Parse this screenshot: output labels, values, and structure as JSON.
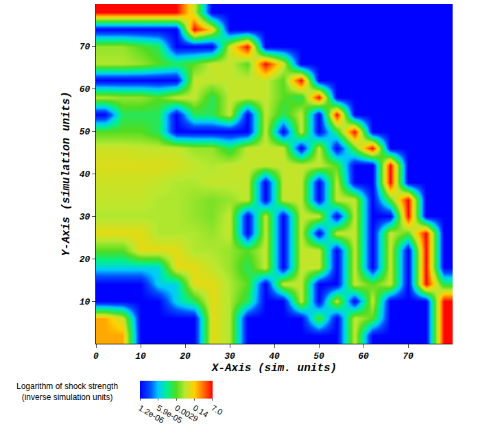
{
  "chart_data": {
    "type": "heatmap",
    "x_label": "X-Axis (sim. units)",
    "y_label": "Y-Axis (simulation units)",
    "x": [
      2,
      6,
      10,
      14,
      18,
      22,
      26,
      30,
      34,
      38,
      42,
      46,
      50,
      54,
      58,
      62,
      66,
      70,
      74,
      78
    ],
    "y": [
      2,
      6,
      10,
      14,
      18,
      22,
      26,
      30,
      34,
      38,
      42,
      46,
      50,
      54,
      58,
      62,
      66,
      70,
      74,
      78
    ],
    "z": [
      [
        -0.5,
        -0.5,
        -5.9,
        -5.9,
        -5.9,
        -5.9,
        -1.2,
        -1.8,
        -5.9,
        -5.9,
        -5.9,
        -5.9,
        -5.9,
        -5.9,
        -1.6,
        -5.9,
        -5.9,
        -5.9,
        -5.9,
        0.8
      ],
      [
        -0.5,
        -1.5,
        -5.9,
        -5.9,
        -5.9,
        -5.9,
        -1.2,
        -1.8,
        -5.9,
        -5.9,
        -5.9,
        -5.9,
        -2.5,
        -5.9,
        -1.6,
        -2.5,
        -5.9,
        -5.9,
        -5.9,
        0.8
      ],
      [
        -5.9,
        -5.9,
        -5.9,
        -5.9,
        -4,
        -3,
        -1.2,
        -1.8,
        -3,
        -5.9,
        -5.9,
        -1.6,
        -5.9,
        -1.6,
        -5.9,
        -1.6,
        -5.9,
        -5.9,
        -5.9,
        0.8
      ],
      [
        -5.9,
        -5.9,
        -5.9,
        -4,
        -4,
        -1.2,
        -1.2,
        -1.8,
        -2.5,
        -5.9,
        -1.6,
        -1.6,
        -5.9,
        -5.9,
        -1.6,
        -2.5,
        -1.6,
        -5.9,
        0.8,
        -3
      ],
      [
        -4,
        -4,
        -4,
        -4,
        -1.2,
        -1.2,
        -1.6,
        -2,
        -3,
        -1.6,
        -5.9,
        -1.6,
        -1.6,
        -5.9,
        -1.6,
        -5.9,
        -1.6,
        -5.9,
        0.8,
        -5.9
      ],
      [
        -2.5,
        -2.5,
        -1.2,
        -1.2,
        -1.2,
        -1.8,
        -1.8,
        -2,
        -2.5,
        -1.6,
        -5.9,
        -1.6,
        -1.6,
        -5.9,
        -1.6,
        -5.9,
        -1.6,
        -5.9,
        0.8,
        -5.9
      ],
      [
        -1.2,
        -1.2,
        -1.2,
        -1.8,
        -1.8,
        -1.8,
        -2,
        -1.6,
        -5.9,
        -1.6,
        -5.9,
        -1.6,
        -5.9,
        -1.6,
        -1.6,
        -5.9,
        -1.6,
        -2.5,
        0.8,
        -5.9
      ],
      [
        -1.8,
        -1.8,
        -1.8,
        -1.8,
        -1.8,
        -2,
        -2.2,
        -1.6,
        -5.9,
        -1.6,
        -5.9,
        -1.6,
        -1.6,
        -5.9,
        -1.6,
        -5.9,
        -5.9,
        0.8,
        -5.9,
        -5.9
      ],
      [
        -1.6,
        -1.6,
        -1.6,
        -1.8,
        -1.8,
        -2,
        -2.2,
        -2,
        -1.6,
        -5.9,
        -1.6,
        -1.6,
        -5.9,
        -1.6,
        -1.6,
        -5.9,
        -2.5,
        0.8,
        -5.9,
        -5.9
      ],
      [
        -1.5,
        -1.5,
        -1.5,
        -1.6,
        -1.8,
        -1.8,
        -1.6,
        -1.6,
        -1.6,
        -5.9,
        -1.6,
        -1.6,
        -5.9,
        -1.6,
        -5.9,
        -5.9,
        0.8,
        -5.9,
        -5.9,
        -5.9
      ],
      [
        -1.3,
        -1.3,
        -1.3,
        -1.3,
        -1.4,
        -1.6,
        -1.8,
        -1.6,
        -1.6,
        -1.6,
        -1.6,
        -1.6,
        -1.6,
        -2.5,
        -5.9,
        -5.9,
        0.8,
        -5.9,
        -5.9,
        -5.9
      ],
      [
        -1.5,
        -1.5,
        -1.6,
        -1.6,
        -1.6,
        -2,
        -2,
        -3,
        -1.6,
        -1.6,
        -1.6,
        -5.9,
        -1.6,
        -5.9,
        -2.5,
        0.8,
        -5.9,
        -5.9,
        -5.9,
        -5.9
      ],
      [
        -2.5,
        -2.5,
        -2.5,
        -3,
        -5.9,
        -5.9,
        -5.9,
        -5.9,
        -5.9,
        -1.6,
        -5.9,
        -1.6,
        -5.9,
        -3,
        0.8,
        -5.9,
        -5.9,
        -5.9,
        -5.9,
        -5.9
      ],
      [
        -5.9,
        -3,
        -3,
        -3,
        -5.9,
        -3,
        -3,
        -1.6,
        -5.9,
        -1.6,
        -3,
        -1.6,
        -5.9,
        0.8,
        -5.9,
        -5.9,
        -5.9,
        -5.9,
        -5.9,
        -5.9
      ],
      [
        -1.8,
        -2,
        -2,
        -2.5,
        -1.6,
        -1.6,
        -3,
        -1.6,
        -1.6,
        -1.6,
        -2.5,
        -3,
        0.8,
        -5.9,
        -5.9,
        -5.9,
        -5.9,
        -5.9,
        -5.9,
        -5.9
      ],
      [
        -5.9,
        -5.9,
        -5.9,
        -5.9,
        -5.9,
        -1.6,
        -1.6,
        -1.6,
        -1.6,
        -1.6,
        -2.5,
        0.8,
        -5.9,
        -5.9,
        -5.9,
        -5.9,
        -5.9,
        -5.9,
        -5.9,
        -5.9
      ],
      [
        -1.8,
        -1.8,
        -2,
        -2.5,
        -3,
        -2.5,
        -1.6,
        -1.6,
        -2.5,
        0.8,
        -1.5,
        -5.9,
        -5.9,
        -5.9,
        -5.9,
        -5.9,
        -5.9,
        -5.9,
        -5.9,
        -5.9
      ],
      [
        -2,
        -2,
        -2.5,
        -3,
        -5.9,
        -5.9,
        -5.9,
        -1.5,
        0.8,
        -5.9,
        -5.9,
        -5.9,
        -5.9,
        -5.9,
        -5.9,
        -5.9,
        -5.9,
        -5.9,
        -5.9,
        -5.9
      ],
      [
        -5.9,
        -5.9,
        -5.9,
        -5.9,
        -5.9,
        0.8,
        -1.0,
        -5.9,
        -5.9,
        -5.9,
        -5.9,
        -5.9,
        -5.9,
        -5.9,
        -5.9,
        -5.9,
        -5.9,
        -5.9,
        -5.9,
        -5.9
      ],
      [
        0.8,
        0.8,
        0.8,
        0.8,
        0.8,
        -1.5,
        -5.9,
        -5.9,
        -5.9,
        -5.9,
        -5.9,
        -5.9,
        -5.9,
        -5.9,
        -5.9,
        -5.9,
        -5.9,
        -5.9,
        -5.9,
        -5.9
      ]
    ],
    "xlim": [
      0,
      80
    ],
    "ylim": [
      0,
      80
    ],
    "xticks": [
      0,
      10,
      20,
      30,
      40,
      50,
      60,
      70
    ],
    "yticks": [
      10,
      20,
      30,
      40,
      50,
      60,
      70
    ],
    "grid": false,
    "colorbar_title": "Logarithm of shock strength (inverse simulation units)",
    "zlim": [
      -5.921,
      0.845
    ],
    "zticks": [
      {
        "value": -5.921,
        "label": "1.2e-06"
      },
      {
        "value": -4.229,
        "label": "5.9e-05"
      },
      {
        "value": -2.538,
        "label": "0.0029"
      },
      {
        "value": -0.854,
        "label": "0.14"
      },
      {
        "value": 0.845,
        "label": "7.0"
      }
    ]
  }
}
